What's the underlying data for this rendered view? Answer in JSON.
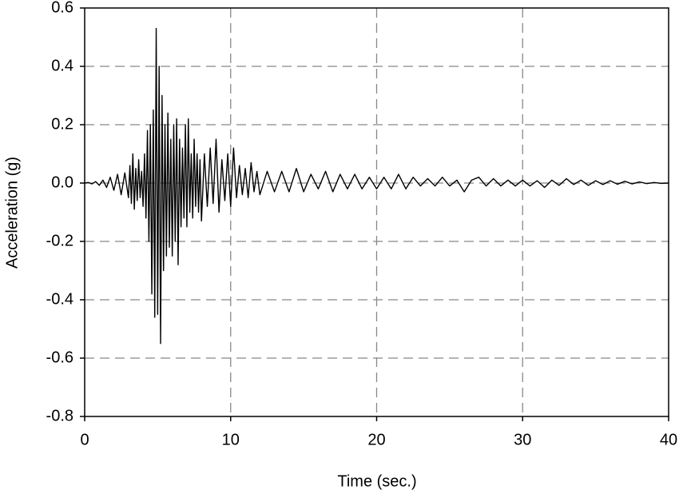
{
  "chart_data": {
    "type": "line",
    "xlabel": "Time (sec.)",
    "ylabel": "Acceleration (g)",
    "color": "#000000",
    "grid": true,
    "xlim": [
      0,
      40
    ],
    "xticks": [
      0,
      10,
      20,
      30,
      40
    ],
    "ylim": [
      -0.8,
      0.6
    ],
    "yticks": [
      -0.8,
      -0.6,
      -0.4,
      -0.2,
      {
        "value": 0,
        "label": "0.0"
      },
      0.2,
      0.4,
      0.6
    ],
    "x": [
      0,
      0.25,
      0.5,
      0.75,
      1,
      1.25,
      1.5,
      1.75,
      2,
      2.25,
      2.5,
      2.75,
      3.0,
      3.1,
      3.2,
      3.3,
      3.4,
      3.5,
      3.6,
      3.7,
      3.8,
      3.9,
      4.0,
      4.1,
      4.2,
      4.3,
      4.4,
      4.5,
      4.6,
      4.7,
      4.8,
      4.9,
      5.0,
      5.1,
      5.2,
      5.3,
      5.4,
      5.5,
      5.6,
      5.7,
      5.8,
      5.9,
      6.0,
      6.1,
      6.2,
      6.3,
      6.4,
      6.5,
      6.6,
      6.7,
      6.8,
      6.9,
      7.0,
      7.1,
      7.2,
      7.3,
      7.4,
      7.5,
      7.6,
      7.7,
      7.8,
      7.9,
      8.0,
      8.2,
      8.4,
      8.6,
      8.8,
      9.0,
      9.2,
      9.4,
      9.6,
      9.8,
      10.0,
      10.2,
      10.4,
      10.6,
      10.8,
      11.0,
      11.2,
      11.4,
      11.6,
      11.8,
      12,
      12.5,
      13,
      13.5,
      14,
      14.5,
      15,
      15.5,
      16,
      16.5,
      17,
      17.5,
      18,
      18.5,
      19,
      19.5,
      20,
      20.5,
      21,
      21.5,
      22,
      22.5,
      23,
      23.5,
      24,
      24.5,
      25,
      25.5,
      26,
      26.5,
      27,
      27.5,
      28,
      28.5,
      29,
      29.5,
      30,
      30.5,
      31,
      31.5,
      32,
      32.5,
      33,
      33.5,
      34,
      34.5,
      35,
      35.5,
      36,
      36.5,
      37,
      37.5,
      38,
      38.5,
      39,
      39.5,
      40
    ],
    "values": [
      0,
      0.002,
      -0.003,
      0.005,
      -0.008,
      0.01,
      -0.015,
      0.02,
      -0.025,
      0.03,
      -0.04,
      0.035,
      -0.05,
      0.06,
      -0.07,
      0.1,
      -0.09,
      0.05,
      -0.06,
      0.08,
      -0.05,
      0.04,
      -0.08,
      0.1,
      -0.12,
      0.18,
      -0.2,
      0.2,
      -0.38,
      0.25,
      -0.46,
      0.53,
      -0.45,
      0.4,
      -0.55,
      0.3,
      -0.3,
      0.2,
      -0.25,
      0.24,
      -0.22,
      0.15,
      -0.25,
      0.2,
      -0.2,
      0.22,
      -0.28,
      0.15,
      -0.15,
      0.12,
      -0.12,
      0.2,
      -0.15,
      0.22,
      -0.1,
      0.1,
      -0.12,
      0.15,
      -0.08,
      0.1,
      -0.1,
      0.08,
      -0.13,
      0.1,
      -0.08,
      0.12,
      -0.07,
      0.15,
      -0.1,
      0.08,
      -0.06,
      0.1,
      -0.08,
      0.12,
      -0.05,
      0.06,
      -0.04,
      0.05,
      -0.05,
      0.07,
      -0.03,
      0.04,
      -0.04,
      0.04,
      -0.03,
      0.04,
      -0.03,
      0.05,
      -0.03,
      0.03,
      -0.02,
      0.04,
      -0.03,
      0.03,
      -0.02,
      0.03,
      -0.02,
      0.02,
      -0.02,
      0.02,
      -0.02,
      0.03,
      -0.02,
      0.02,
      -0.01,
      0.015,
      -0.01,
      0.02,
      -0.01,
      0.01,
      -0.03,
      0.01,
      0.02,
      -0.01,
      0.015,
      -0.01,
      0.01,
      -0.01,
      0.01,
      -0.01,
      0.008,
      -0.015,
      0.01,
      -0.008,
      0.015,
      -0.005,
      0.01,
      -0.008,
      0.008,
      -0.005,
      0.008,
      -0.004,
      0.006,
      -0.003,
      0.004,
      -0.002,
      0.002,
      -0.001,
      0
    ]
  }
}
